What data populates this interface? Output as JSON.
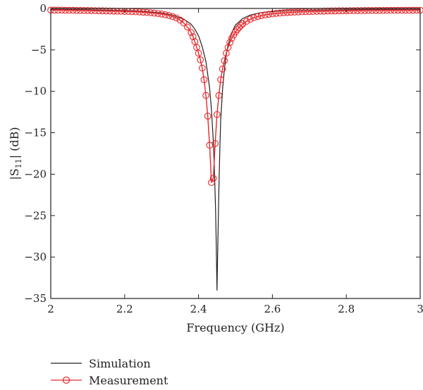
{
  "chart_data": {
    "type": "line",
    "xlabel": "Frequency (GHz)",
    "ylabel_main": "|S",
    "ylabel_sub": "11",
    "ylabel_tail": "| (dB)",
    "xlim": [
      2,
      3
    ],
    "ylim": [
      -35,
      0
    ],
    "x_ticks": [
      2,
      2.2,
      2.4,
      2.6,
      2.8,
      3
    ],
    "x_tick_labels": [
      "2",
      "2.2",
      "2.4",
      "2.6",
      "2.8",
      "3"
    ],
    "y_ticks": [
      0,
      -5,
      -10,
      -15,
      -20,
      -25,
      -30,
      -35
    ],
    "y_tick_labels": [
      "0",
      "−5",
      "−10",
      "−15",
      "−20",
      "−25",
      "−30",
      "−35"
    ],
    "grid": false,
    "legend_position": "bottom-left, below plot",
    "series": [
      {
        "name": "Simulation",
        "color": "#231f20",
        "marker": "none",
        "x": [
          2.0,
          2.1,
          2.2,
          2.25,
          2.3,
          2.33,
          2.36,
          2.38,
          2.39,
          2.4,
          2.41,
          2.42,
          2.43,
          2.435,
          2.44,
          2.443,
          2.446,
          2.448,
          2.45,
          2.452,
          2.455,
          2.458,
          2.46,
          2.465,
          2.47,
          2.475,
          2.48,
          2.49,
          2.5,
          2.52,
          2.54,
          2.57,
          2.6,
          2.65,
          2.7,
          2.8,
          2.9,
          3.0
        ],
        "y": [
          -0.1,
          -0.15,
          -0.25,
          -0.35,
          -0.55,
          -0.8,
          -1.3,
          -1.9,
          -2.5,
          -3.3,
          -4.6,
          -6.4,
          -9.6,
          -12.2,
          -16.0,
          -19.5,
          -24.0,
          -28.5,
          -34.0,
          -29.0,
          -22.0,
          -16.5,
          -13.5,
          -9.8,
          -7.3,
          -5.6,
          -4.4,
          -2.9,
          -2.0,
          -1.2,
          -0.8,
          -0.5,
          -0.35,
          -0.25,
          -0.2,
          -0.15,
          -0.12,
          -0.1
        ]
      },
      {
        "name": "Measurement",
        "color": "#e8262a",
        "marker": "circle",
        "x": [
          2.0,
          2.01,
          2.02,
          2.03,
          2.04,
          2.05,
          2.06,
          2.07,
          2.08,
          2.09,
          2.1,
          2.11,
          2.12,
          2.13,
          2.14,
          2.15,
          2.16,
          2.17,
          2.18,
          2.19,
          2.2,
          2.21,
          2.22,
          2.23,
          2.24,
          2.25,
          2.26,
          2.27,
          2.28,
          2.29,
          2.3,
          2.31,
          2.32,
          2.33,
          2.34,
          2.35,
          2.36,
          2.37,
          2.38,
          2.385,
          2.39,
          2.395,
          2.4,
          2.405,
          2.41,
          2.415,
          2.42,
          2.425,
          2.43,
          2.435,
          2.44,
          2.445,
          2.45,
          2.455,
          2.46,
          2.465,
          2.47,
          2.475,
          2.48,
          2.485,
          2.49,
          2.495,
          2.5,
          2.505,
          2.51,
          2.515,
          2.52,
          2.53,
          2.54,
          2.55,
          2.56,
          2.57,
          2.58,
          2.59,
          2.6,
          2.61,
          2.62,
          2.63,
          2.64,
          2.65,
          2.66,
          2.67,
          2.68,
          2.69,
          2.7,
          2.71,
          2.72,
          2.73,
          2.74,
          2.75,
          2.76,
          2.77,
          2.78,
          2.79,
          2.8,
          2.81,
          2.82,
          2.83,
          2.84,
          2.85,
          2.86,
          2.87,
          2.88,
          2.89,
          2.9,
          2.91,
          2.92,
          2.93,
          2.94,
          2.95,
          2.96,
          2.97,
          2.98,
          2.99,
          3.0
        ],
        "y": [
          -0.2,
          -0.2,
          -0.2,
          -0.2,
          -0.22,
          -0.22,
          -0.22,
          -0.24,
          -0.24,
          -0.25,
          -0.25,
          -0.26,
          -0.27,
          -0.28,
          -0.29,
          -0.3,
          -0.31,
          -0.32,
          -0.33,
          -0.34,
          -0.35,
          -0.36,
          -0.38,
          -0.4,
          -0.42,
          -0.45,
          -0.48,
          -0.52,
          -0.56,
          -0.61,
          -0.67,
          -0.75,
          -0.85,
          -0.98,
          -1.15,
          -1.4,
          -1.75,
          -2.25,
          -2.9,
          -3.4,
          -4.0,
          -4.7,
          -5.4,
          -6.2,
          -7.2,
          -8.6,
          -10.5,
          -13.0,
          -16.5,
          -21.0,
          -20.5,
          -16.3,
          -12.8,
          -10.5,
          -8.6,
          -7.3,
          -6.3,
          -5.4,
          -4.7,
          -4.1,
          -3.6,
          -3.2,
          -2.85,
          -2.55,
          -2.3,
          -2.05,
          -1.85,
          -1.55,
          -1.3,
          -1.12,
          -0.98,
          -0.87,
          -0.78,
          -0.71,
          -0.65,
          -0.6,
          -0.56,
          -0.52,
          -0.49,
          -0.46,
          -0.44,
          -0.42,
          -0.4,
          -0.38,
          -0.37,
          -0.35,
          -0.34,
          -0.33,
          -0.32,
          -0.31,
          -0.3,
          -0.3,
          -0.29,
          -0.28,
          -0.28,
          -0.27,
          -0.27,
          -0.26,
          -0.26,
          -0.25,
          -0.25,
          -0.25,
          -0.24,
          -0.24,
          -0.24,
          -0.23,
          -0.23,
          -0.23,
          -0.22,
          -0.22,
          -0.22,
          -0.22,
          -0.21,
          -0.21,
          -0.21
        ]
      }
    ]
  }
}
